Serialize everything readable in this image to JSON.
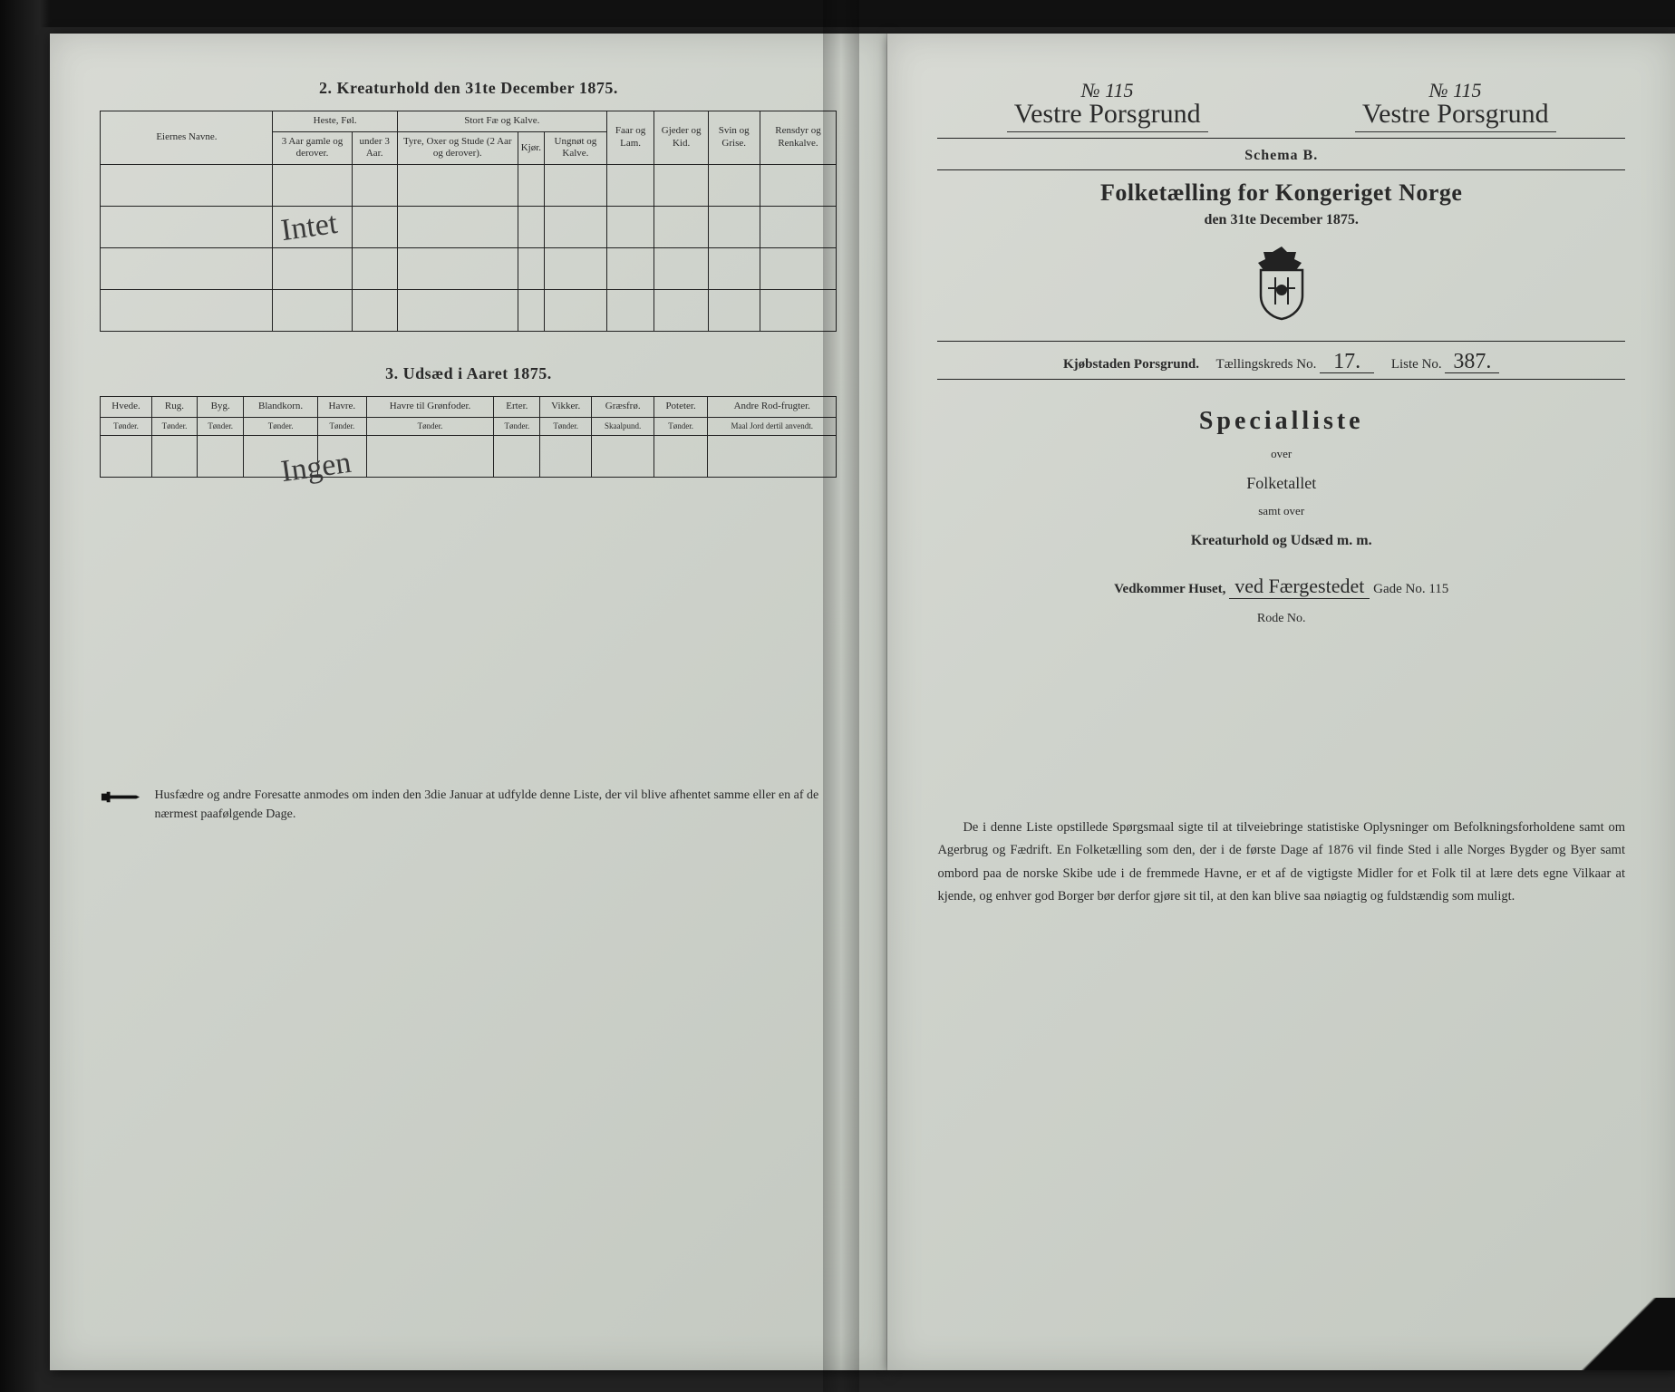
{
  "background_color": "#1a1a1a",
  "paper_color": "#d0d4cc",
  "ink_color": "#2a2a2a",
  "left_page": {
    "section2": {
      "title": "2.  Kreaturhold den 31te December 1875.",
      "owner_header": "Eiernes Navne.",
      "group_heste": "Heste, Føl.",
      "group_stort": "Stort Fæ og Kalve.",
      "group_faar": "Faar og Lam.",
      "group_gjeder": "Gjeder og Kid.",
      "group_svin": "Svin og Grise.",
      "group_rensdyr": "Rensdyr og Renkalve.",
      "heste_sub1": "3 Aar gamle og derover.",
      "heste_sub2": "under 3 Aar.",
      "stort_sub1": "Tyre, Oxer og Stude (2 Aar og derover).",
      "stort_sub2": "Kjør.",
      "stort_sub3": "Ungnøt og Kalve.",
      "handwritten_over": "Intet"
    },
    "section3": {
      "title": "3.  Udsæd i Aaret 1875.",
      "cols": [
        {
          "name": "Hvede.",
          "unit": "Tønder."
        },
        {
          "name": "Rug.",
          "unit": "Tønder."
        },
        {
          "name": "Byg.",
          "unit": "Tønder."
        },
        {
          "name": "Blandkorn.",
          "unit": "Tønder."
        },
        {
          "name": "Havre.",
          "unit": "Tønder."
        },
        {
          "name": "Havre til Grønfoder.",
          "unit": "Tønder."
        },
        {
          "name": "Erter.",
          "unit": "Tønder."
        },
        {
          "name": "Vikker.",
          "unit": "Tønder."
        },
        {
          "name": "Græsfrø.",
          "unit": "Skaalpund."
        },
        {
          "name": "Poteter.",
          "unit": "Tønder."
        },
        {
          "name": "Andre Rod-frugter.",
          "unit": "Maal Jord dertil anvendt."
        }
      ],
      "handwritten_over": "Ingen"
    },
    "footnote": "Husfædre og andre Foresatte anmodes om inden den 3die Januar at udfylde denne Liste, der vil blive afhentet samme eller en af de nærmest paafølgende Dage."
  },
  "right_page": {
    "top_left_no": "№ 115",
    "top_right_no": "№ 115",
    "top_left_place": "Vestre Porsgrund",
    "top_right_place": "Vestre Porsgrund",
    "schema": "Schema B.",
    "main_title": "Folketælling for Kongeriget Norge",
    "sub_date": "den 31te December 1875.",
    "fill_city_label": "Kjøbstaden Porsgrund.",
    "fill_kreds_label": "Tællingskreds No.",
    "fill_kreds_value": "17.",
    "fill_liste_label": "Liste No.",
    "fill_liste_value": "387.",
    "spec_title": "Specialliste",
    "spec_over": "over",
    "spec_folketallet": "Folketallet",
    "spec_samt": "samt over",
    "spec_kreatur": "Kreaturhold og Udsæd m. m.",
    "house_label_pre": "Vedkommer Huset,",
    "house_street": "ved Færgestedet",
    "house_gade_label": "Gade No.",
    "house_gade_value": "115",
    "rode_label": "Rode No.",
    "body_text": "De i denne Liste opstillede Spørgsmaal sigte til at tilveiebringe statistiske Oplysninger om Befolkningsforholdene samt om Agerbrug og Fædrift.  En Folketælling som den, der i de første Dage af 1876 vil finde Sted i alle Norges Bygder og Byer samt ombord paa de norske Skibe ude i de fremmede Havne, er et af de vigtigste Midler for et Folk til at lære dets egne Vilkaar at kjende, og enhver god Borger bør derfor gjøre sit til, at den kan blive saa nøiagtig og fuldstændig som muligt."
  }
}
